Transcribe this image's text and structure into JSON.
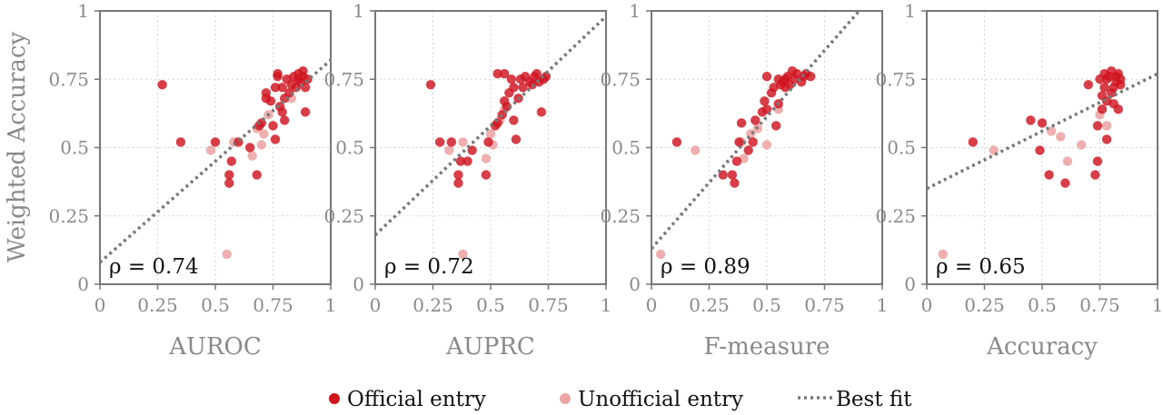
{
  "colors": {
    "official": "#d0141e",
    "unofficial": "#eda6a6",
    "fit": "#777777",
    "axis": "#777777",
    "grid": "#d6d6d6"
  },
  "y_axis_label": "Weighted Accuracy",
  "legend": {
    "official": "Official entry",
    "unofficial": "Unofficial entry",
    "fit": "Best fit"
  },
  "chart_data": [
    {
      "type": "scatter",
      "xlabel": "AUROC",
      "ylabel": "Weighted Accuracy",
      "xlim": [
        0,
        1
      ],
      "ylim": [
        0,
        1
      ],
      "xticks": [
        "0",
        "0.25",
        "0.5",
        "0.75",
        "1"
      ],
      "yticks": [
        "0",
        "0.25",
        "0.5",
        "0.75",
        "1"
      ],
      "grid": true,
      "correlation_label": "ρ = 0.74",
      "fit_line": [
        [
          0,
          0.08
        ],
        [
          1,
          0.82
        ]
      ],
      "official": [
        [
          0.27,
          0.73
        ],
        [
          0.35,
          0.52
        ],
        [
          0.5,
          0.52
        ],
        [
          0.6,
          0.52
        ],
        [
          0.56,
          0.37
        ],
        [
          0.56,
          0.4
        ],
        [
          0.57,
          0.45
        ],
        [
          0.65,
          0.5
        ],
        [
          0.68,
          0.4
        ],
        [
          0.69,
          0.58
        ],
        [
          0.7,
          0.59
        ],
        [
          0.72,
          0.68
        ],
        [
          0.72,
          0.7
        ],
        [
          0.74,
          0.67
        ],
        [
          0.75,
          0.58
        ],
        [
          0.76,
          0.53
        ],
        [
          0.76,
          0.72
        ],
        [
          0.77,
          0.76
        ],
        [
          0.77,
          0.77
        ],
        [
          0.78,
          0.65
        ],
        [
          0.79,
          0.63
        ],
        [
          0.79,
          0.72
        ],
        [
          0.8,
          0.6
        ],
        [
          0.8,
          0.68
        ],
        [
          0.81,
          0.75
        ],
        [
          0.82,
          0.7
        ],
        [
          0.83,
          0.73
        ],
        [
          0.84,
          0.76
        ],
        [
          0.85,
          0.72
        ],
        [
          0.86,
          0.75
        ],
        [
          0.86,
          0.77
        ],
        [
          0.87,
          0.74
        ],
        [
          0.88,
          0.76
        ],
        [
          0.88,
          0.78
        ],
        [
          0.89,
          0.72
        ],
        [
          0.89,
          0.63
        ],
        [
          0.9,
          0.75
        ]
      ],
      "unofficial": [
        [
          0.48,
          0.49
        ],
        [
          0.55,
          0.11
        ],
        [
          0.58,
          0.52
        ],
        [
          0.66,
          0.47
        ],
        [
          0.68,
          0.57
        ],
        [
          0.7,
          0.51
        ],
        [
          0.71,
          0.55
        ],
        [
          0.73,
          0.62
        ],
        [
          0.83,
          0.68
        ]
      ]
    },
    {
      "type": "scatter",
      "xlabel": "AUPRC",
      "ylabel": "Weighted Accuracy",
      "xlim": [
        0,
        1
      ],
      "ylim": [
        0,
        1
      ],
      "xticks": [
        "0",
        "0.25",
        "0.5",
        "0.75",
        "1"
      ],
      "yticks": [
        "0",
        "0.25",
        "0.5",
        "0.75",
        "1"
      ],
      "grid": true,
      "correlation_label": "ρ = 0.72",
      "fit_line": [
        [
          0,
          0.18
        ],
        [
          1,
          0.98
        ]
      ],
      "official": [
        [
          0.24,
          0.73
        ],
        [
          0.28,
          0.52
        ],
        [
          0.33,
          0.52
        ],
        [
          0.36,
          0.37
        ],
        [
          0.36,
          0.4
        ],
        [
          0.37,
          0.45
        ],
        [
          0.4,
          0.45
        ],
        [
          0.42,
          0.49
        ],
        [
          0.48,
          0.4
        ],
        [
          0.49,
          0.52
        ],
        [
          0.52,
          0.58
        ],
        [
          0.53,
          0.59
        ],
        [
          0.53,
          0.77
        ],
        [
          0.55,
          0.62
        ],
        [
          0.56,
          0.67
        ],
        [
          0.56,
          0.77
        ],
        [
          0.57,
          0.65
        ],
        [
          0.58,
          0.7
        ],
        [
          0.59,
          0.75
        ],
        [
          0.6,
          0.6
        ],
        [
          0.6,
          0.72
        ],
        [
          0.61,
          0.53
        ],
        [
          0.62,
          0.68
        ],
        [
          0.63,
          0.75
        ],
        [
          0.64,
          0.72
        ],
        [
          0.65,
          0.76
        ],
        [
          0.67,
          0.74
        ],
        [
          0.68,
          0.73
        ],
        [
          0.69,
          0.76
        ],
        [
          0.7,
          0.77
        ],
        [
          0.71,
          0.74
        ],
        [
          0.72,
          0.63
        ],
        [
          0.73,
          0.75
        ],
        [
          0.74,
          0.76
        ]
      ],
      "unofficial": [
        [
          0.32,
          0.49
        ],
        [
          0.38,
          0.52
        ],
        [
          0.38,
          0.11
        ],
        [
          0.48,
          0.46
        ],
        [
          0.5,
          0.55
        ],
        [
          0.51,
          0.51
        ],
        [
          0.54,
          0.6
        ],
        [
          0.56,
          0.64
        ]
      ]
    },
    {
      "type": "scatter",
      "xlabel": "F-measure",
      "ylabel": "Weighted Accuracy",
      "xlim": [
        0,
        1
      ],
      "ylim": [
        0,
        1
      ],
      "xticks": [
        "0",
        "0.25",
        "0.5",
        "0.75",
        "1"
      ],
      "yticks": [
        "0",
        "0.25",
        "0.5",
        "0.75",
        "1"
      ],
      "grid": true,
      "correlation_label": "ρ = 0.89",
      "fit_line": [
        [
          0,
          0.13
        ],
        [
          0.9,
          1.0
        ]
      ],
      "official": [
        [
          0.11,
          0.52
        ],
        [
          0.31,
          0.4
        ],
        [
          0.35,
          0.4
        ],
        [
          0.36,
          0.37
        ],
        [
          0.37,
          0.45
        ],
        [
          0.38,
          0.52
        ],
        [
          0.39,
          0.59
        ],
        [
          0.42,
          0.49
        ],
        [
          0.44,
          0.52
        ],
        [
          0.45,
          0.6
        ],
        [
          0.48,
          0.63
        ],
        [
          0.49,
          0.67
        ],
        [
          0.5,
          0.64
        ],
        [
          0.5,
          0.76
        ],
        [
          0.52,
          0.7
        ],
        [
          0.53,
          0.72
        ],
        [
          0.54,
          0.58
        ],
        [
          0.55,
          0.66
        ],
        [
          0.55,
          0.75
        ],
        [
          0.56,
          0.73
        ],
        [
          0.57,
          0.74
        ],
        [
          0.58,
          0.72
        ],
        [
          0.58,
          0.75
        ],
        [
          0.59,
          0.76
        ],
        [
          0.6,
          0.73
        ],
        [
          0.61,
          0.78
        ],
        [
          0.62,
          0.75
        ],
        [
          0.63,
          0.77
        ],
        [
          0.65,
          0.74
        ],
        [
          0.66,
          0.76
        ],
        [
          0.67,
          0.77
        ],
        [
          0.69,
          0.76
        ]
      ],
      "unofficial": [
        [
          0.04,
          0.11
        ],
        [
          0.19,
          0.49
        ],
        [
          0.39,
          0.52
        ],
        [
          0.4,
          0.46
        ],
        [
          0.43,
          0.55
        ],
        [
          0.46,
          0.57
        ],
        [
          0.5,
          0.51
        ],
        [
          0.55,
          0.64
        ]
      ]
    },
    {
      "type": "scatter",
      "xlabel": "Accuracy",
      "ylabel": "Weighted Accuracy",
      "xlim": [
        0,
        1
      ],
      "ylim": [
        0,
        1
      ],
      "xticks": [
        "0",
        "0.25",
        "0.5",
        "0.75",
        "1"
      ],
      "yticks": [
        "0",
        "0.25",
        "0.5",
        "0.75",
        "1"
      ],
      "grid": true,
      "correlation_label": "ρ = 0.65",
      "fit_line": [
        [
          0,
          0.35
        ],
        [
          1,
          0.77
        ]
      ],
      "official": [
        [
          0.2,
          0.52
        ],
        [
          0.45,
          0.6
        ],
        [
          0.49,
          0.49
        ],
        [
          0.5,
          0.59
        ],
        [
          0.53,
          0.4
        ],
        [
          0.6,
          0.37
        ],
        [
          0.7,
          0.73
        ],
        [
          0.73,
          0.4
        ],
        [
          0.74,
          0.45
        ],
        [
          0.74,
          0.58
        ],
        [
          0.75,
          0.75
        ],
        [
          0.76,
          0.64
        ],
        [
          0.76,
          0.69
        ],
        [
          0.77,
          0.72
        ],
        [
          0.77,
          0.77
        ],
        [
          0.78,
          0.53
        ],
        [
          0.78,
          0.67
        ],
        [
          0.78,
          0.75
        ],
        [
          0.79,
          0.76
        ],
        [
          0.8,
          0.7
        ],
        [
          0.8,
          0.78
        ],
        [
          0.81,
          0.72
        ],
        [
          0.81,
          0.66
        ],
        [
          0.82,
          0.74
        ],
        [
          0.82,
          0.76
        ],
        [
          0.83,
          0.64
        ],
        [
          0.83,
          0.77
        ],
        [
          0.84,
          0.73
        ],
        [
          0.84,
          0.75
        ]
      ],
      "unofficial": [
        [
          0.07,
          0.11
        ],
        [
          0.29,
          0.49
        ],
        [
          0.54,
          0.56
        ],
        [
          0.58,
          0.54
        ],
        [
          0.61,
          0.45
        ],
        [
          0.67,
          0.51
        ],
        [
          0.75,
          0.62
        ],
        [
          0.78,
          0.58
        ]
      ]
    }
  ]
}
